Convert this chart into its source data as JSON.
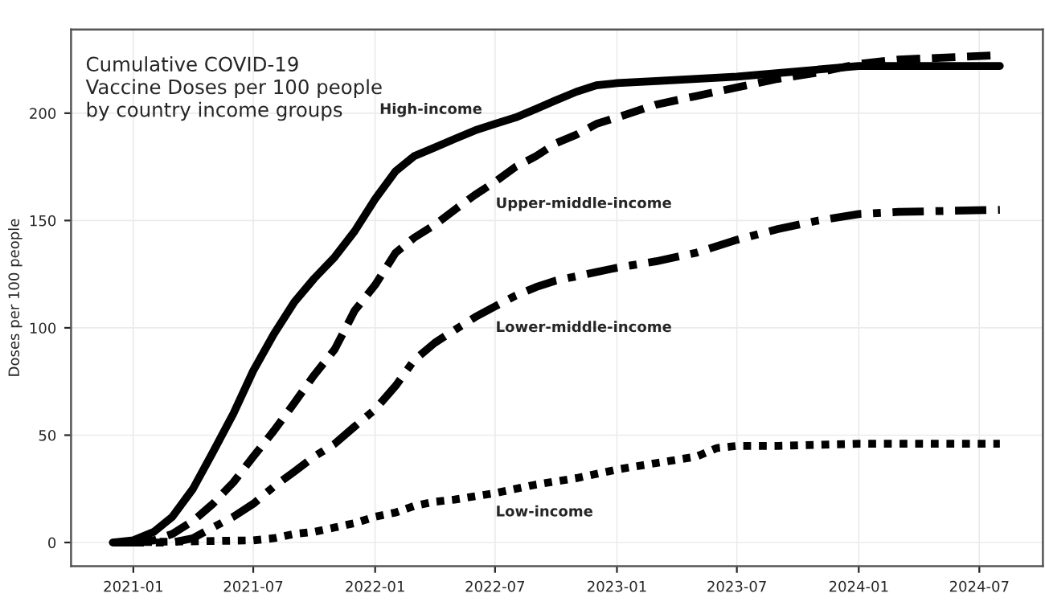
{
  "chart_data": {
    "type": "line",
    "title": "Cumulative COVID-19\nVaccine Doses per 100 people\nby country income groups",
    "ylabel": "Doses per 100 people",
    "xlim": [
      "2020-09-29",
      "2024-10-05"
    ],
    "ylim": [
      -11,
      239
    ],
    "xticks": [
      "2021-01",
      "2021-07",
      "2022-01",
      "2022-07",
      "2023-01",
      "2023-07",
      "2024-01",
      "2024-07"
    ],
    "yticks": [
      0,
      50,
      100,
      150,
      200
    ],
    "grid": true,
    "legend": false,
    "marker": "none",
    "series": [
      {
        "name": "High-income",
        "color": "#000000",
        "line_style": "solid",
        "x": [
          "2020-12",
          "2021-01",
          "2021-02",
          "2021-03",
          "2021-04",
          "2021-05",
          "2021-06",
          "2021-07",
          "2021-08",
          "2021-09",
          "2021-10",
          "2021-11",
          "2021-12",
          "2022-01",
          "2022-02",
          "2022-03",
          "2022-04",
          "2022-05",
          "2022-06",
          "2022-07",
          "2022-08",
          "2022-09",
          "2022-10",
          "2022-11",
          "2022-12",
          "2023-01",
          "2023-03",
          "2023-07",
          "2024-01",
          "2024-08"
        ],
        "values": [
          0,
          1,
          5,
          12,
          25,
          42,
          60,
          80,
          97,
          112,
          123,
          133,
          145,
          160,
          173,
          180,
          184,
          188,
          192,
          195,
          198,
          202,
          206,
          210,
          213,
          214,
          215,
          217,
          222,
          222
        ]
      },
      {
        "name": "Upper-middle-income",
        "color": "#000000",
        "line_style": "dashed",
        "x": [
          "2021-01",
          "2021-02",
          "2021-03",
          "2021-04",
          "2021-05",
          "2021-06",
          "2021-07",
          "2021-08",
          "2021-09",
          "2021-10",
          "2021-11",
          "2021-12",
          "2022-01",
          "2022-02",
          "2022-03",
          "2022-04",
          "2022-05",
          "2022-06",
          "2022-07",
          "2022-08",
          "2022-09",
          "2022-10",
          "2022-11",
          "2022-12",
          "2023-01",
          "2023-03",
          "2023-05",
          "2023-07",
          "2023-09",
          "2023-11",
          "2024-01",
          "2024-03",
          "2024-08"
        ],
        "values": [
          0,
          1,
          4,
          10,
          18,
          28,
          40,
          52,
          65,
          78,
          90,
          108,
          120,
          135,
          142,
          148,
          155,
          162,
          168,
          175,
          180,
          186,
          190,
          195,
          198,
          204,
          208,
          212,
          216,
          219,
          223,
          225,
          227
        ]
      },
      {
        "name": "Lower-middle-income",
        "color": "#000000",
        "line_style": "dashdot",
        "x": [
          "2020-12",
          "2021-03",
          "2021-04",
          "2021-05",
          "2021-06",
          "2021-07",
          "2021-08",
          "2021-09",
          "2021-10",
          "2021-11",
          "2021-12",
          "2022-01",
          "2022-02",
          "2022-03",
          "2022-04",
          "2022-05",
          "2022-06",
          "2022-07",
          "2022-08",
          "2022-09",
          "2022-10",
          "2022-11",
          "2022-12",
          "2023-01",
          "2023-03",
          "2023-05",
          "2023-07",
          "2023-09",
          "2023-11",
          "2024-01",
          "2024-03",
          "2024-08"
        ],
        "values": [
          0,
          0,
          2,
          7,
          12,
          18,
          26,
          33,
          40,
          46,
          54,
          62,
          73,
          85,
          93,
          99,
          105,
          110,
          115,
          119,
          122,
          124,
          126,
          128,
          131,
          135,
          141,
          146,
          150,
          153,
          154,
          155
        ]
      },
      {
        "name": "Low-income",
        "color": "#000000",
        "line_style": "dotted",
        "x": [
          "2020-12",
          "2021-07",
          "2021-08",
          "2021-09",
          "2021-10",
          "2021-11",
          "2021-12",
          "2022-01",
          "2022-02",
          "2022-03",
          "2022-04",
          "2022-05",
          "2022-07",
          "2022-09",
          "2022-11",
          "2023-01",
          "2023-03",
          "2023-05",
          "2023-06",
          "2023-07",
          "2023-09",
          "2024-01",
          "2024-08"
        ],
        "values": [
          0,
          1,
          2,
          4,
          5,
          7,
          9,
          12,
          14,
          17,
          19,
          20,
          23,
          27,
          30,
          34,
          37,
          40,
          44,
          45,
          45,
          46,
          46
        ]
      }
    ]
  }
}
